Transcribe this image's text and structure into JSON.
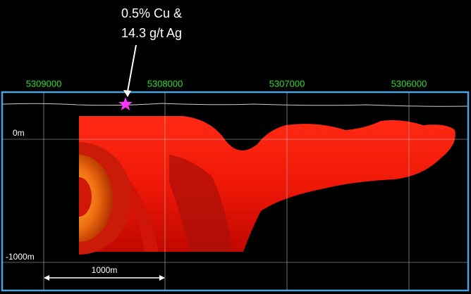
{
  "annotation": {
    "lines": [
      "0.5% Cu &",
      "14.3 g/t Ag"
    ]
  },
  "northings": [
    "5309000",
    "5308000",
    "5307000",
    "5306000"
  ],
  "depths": [
    "0m",
    "-1000m"
  ],
  "scale_bar": {
    "label": "1000m"
  }
}
